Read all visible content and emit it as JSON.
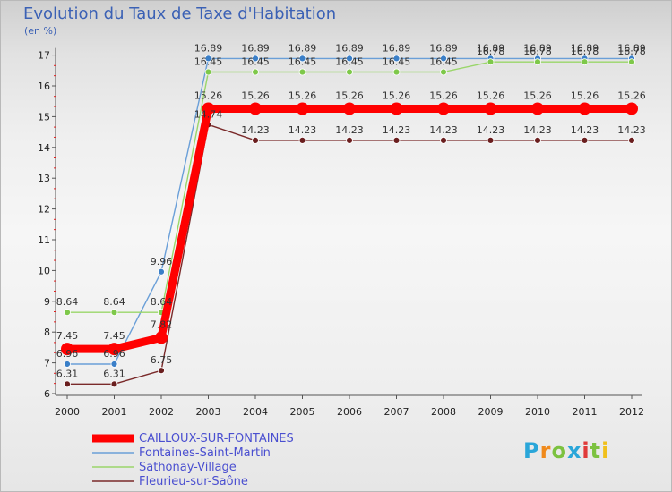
{
  "chart_data": {
    "type": "line",
    "title": "Evolution du Taux de Taxe d'Habitation",
    "subtitle": "(en %)",
    "categories": [
      "2000",
      "2001",
      "2002",
      "2003",
      "2004",
      "2005",
      "2006",
      "2007",
      "2008",
      "2009",
      "2010",
      "2011",
      "2012"
    ],
    "ylim": [
      6,
      17
    ],
    "yticks": [
      6,
      7,
      8,
      9,
      10,
      11,
      12,
      13,
      14,
      15,
      16,
      17
    ],
    "series": [
      {
        "name": "CAILLOUX-SUR-FONTAINES",
        "color": "#ff0000",
        "marker_color": "#ff0000",
        "values": [
          7.45,
          7.45,
          7.82,
          15.26,
          15.26,
          15.26,
          15.26,
          15.26,
          15.26,
          15.26,
          15.26,
          15.26,
          15.26
        ],
        "labels": [
          "7.45",
          "7.45",
          "7.82",
          "15.26",
          "15.26",
          "15.26",
          "15.26",
          "15.26",
          "15.26",
          "15.26",
          "15.26",
          "15.26",
          "15.26"
        ]
      },
      {
        "name": "Fontaines-Saint-Martin",
        "color": "#6a9fd8",
        "marker_color": "#3a7fc8",
        "values": [
          6.96,
          6.96,
          9.96,
          16.89,
          16.89,
          16.89,
          16.89,
          16.89,
          16.89,
          16.89,
          16.89,
          16.89,
          16.89
        ],
        "labels": [
          "6.96",
          "6.96",
          "9.96",
          "16.89",
          "16.89",
          "16.89",
          "16.89",
          "16.89",
          "16.89",
          "16.89",
          "16.89",
          "16.89",
          "16.89"
        ]
      },
      {
        "name": "Sathonay-Village",
        "color": "#9ad66a",
        "marker_color": "#7ec84a",
        "values": [
          8.64,
          8.64,
          8.64,
          16.45,
          16.45,
          16.45,
          16.45,
          16.45,
          16.45,
          16.78,
          16.78,
          16.78,
          16.78
        ],
        "labels": [
          "8.64",
          "8.64",
          "8.64",
          "16.45",
          "16.45",
          "16.45",
          "16.45",
          "16.45",
          "16.45",
          "16.78",
          "16.78",
          "16.78",
          "16.78"
        ]
      },
      {
        "name": "Fleurieu-sur-Saône",
        "color": "#7a2a2a",
        "marker_color": "#6a1e1e",
        "values": [
          6.31,
          6.31,
          6.75,
          14.74,
          14.23,
          14.23,
          14.23,
          14.23,
          14.23,
          14.23,
          14.23,
          14.23,
          14.23
        ],
        "labels": [
          "6.31",
          "6.31",
          "6.75",
          "14.74",
          "14.23",
          "14.23",
          "14.23",
          "14.23",
          "14.23",
          "14.23",
          "14.23",
          "14.23",
          "14.23"
        ]
      }
    ]
  },
  "logo_text": "Proxiti"
}
